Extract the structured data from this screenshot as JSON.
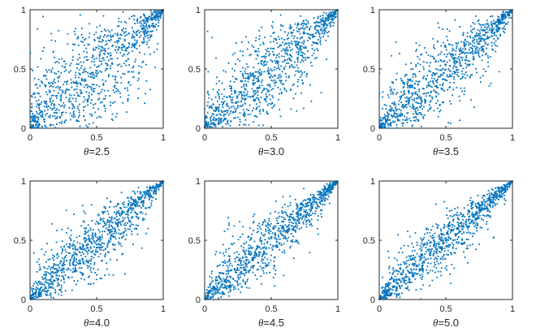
{
  "chart_data": [
    {
      "type": "scatter",
      "xlabel_symbol": "θ",
      "xlabel_value": "=2.5",
      "theta": 2.5,
      "n_points": 1000,
      "xlim": [
        0,
        1
      ],
      "ylim": [
        0,
        1
      ],
      "x_ticks": [
        "0",
        "0.5",
        "1"
      ],
      "y_ticks": [
        "0",
        "0.5",
        "1"
      ],
      "marker_color": "#0072BD",
      "grid": false,
      "legend": "none"
    },
    {
      "type": "scatter",
      "xlabel_symbol": "θ",
      "xlabel_value": "=3.0",
      "theta": 3.0,
      "n_points": 1000,
      "xlim": [
        0,
        1
      ],
      "ylim": [
        0,
        1
      ],
      "x_ticks": [
        "0",
        "0.5",
        "1"
      ],
      "y_ticks": [
        "0",
        "0.5",
        "1"
      ],
      "marker_color": "#0072BD",
      "grid": false,
      "legend": "none"
    },
    {
      "type": "scatter",
      "xlabel_symbol": "θ",
      "xlabel_value": "=3.5",
      "theta": 3.5,
      "n_points": 1000,
      "xlim": [
        0,
        1
      ],
      "ylim": [
        0,
        1
      ],
      "x_ticks": [
        "0",
        "0.5",
        "1"
      ],
      "y_ticks": [
        "0",
        "0.5",
        "1"
      ],
      "marker_color": "#0072BD",
      "grid": false,
      "legend": "none"
    },
    {
      "type": "scatter",
      "xlabel_symbol": "θ",
      "xlabel_value": "=4.0",
      "theta": 4.0,
      "n_points": 1000,
      "xlim": [
        0,
        1
      ],
      "ylim": [
        0,
        1
      ],
      "x_ticks": [
        "0",
        "0.5",
        "1"
      ],
      "y_ticks": [
        "0",
        "0.5",
        "1"
      ],
      "marker_color": "#0072BD",
      "grid": false,
      "legend": "none"
    },
    {
      "type": "scatter",
      "xlabel_symbol": "θ",
      "xlabel_value": "=4.5",
      "theta": 4.5,
      "n_points": 1000,
      "xlim": [
        0,
        1
      ],
      "ylim": [
        0,
        1
      ],
      "x_ticks": [
        "0",
        "0.5",
        "1"
      ],
      "y_ticks": [
        "0",
        "0.5",
        "1"
      ],
      "marker_color": "#0072BD",
      "grid": false,
      "legend": "none"
    },
    {
      "type": "scatter",
      "xlabel_symbol": "θ",
      "xlabel_value": "=5.0",
      "theta": 5.0,
      "n_points": 1000,
      "xlim": [
        0,
        1
      ],
      "ylim": [
        0,
        1
      ],
      "x_ticks": [
        "0",
        "0.5",
        "1"
      ],
      "y_ticks": [
        "0",
        "0.5",
        "1"
      ],
      "marker_color": "#0072BD",
      "grid": false,
      "legend": "none"
    }
  ]
}
